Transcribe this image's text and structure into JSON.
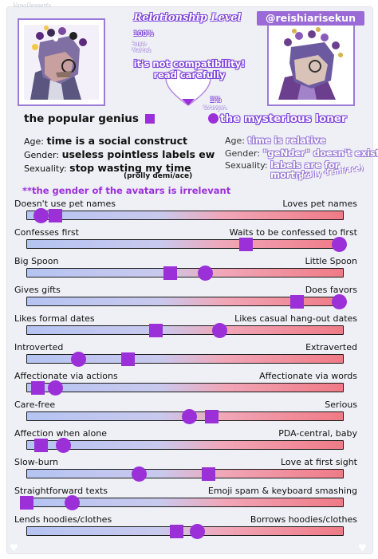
{
  "watermark": "VanaDesserts",
  "header": {
    "title": "Relationship Level",
    "percent_top": "100%",
    "percent_top_caption": "Super\nMarried",
    "percent_bottom": "1%",
    "percent_bottom_caption": "Strangers",
    "notice": "it's not compatibility!\nread carefully",
    "handle": "@reishiarisekun"
  },
  "left": {
    "name": "the popular genius",
    "marker": "square",
    "age_label": "Age:",
    "age": "time is a social construct",
    "gender_label": "Gender:",
    "gender": "useless pointless labels ew",
    "sexuality_label": "Sexuality:",
    "sexuality": "stop wasting my time",
    "sexuality_note": "(prolly demi/ace)"
  },
  "right": {
    "name": "the mysterious loner",
    "marker": "circle",
    "age_label": "Age:",
    "age": "time is relative",
    "gender_label": "Gender:",
    "gender": "\"geNder\" doesn't exist",
    "sexuality_label": "Sexuality:",
    "sexuality": "labels are for\nmortals",
    "sexuality_note": "(prolly demi/ace)"
  },
  "gender_note": "**the gender of the avatars is irrelevant",
  "colors": {
    "accent": "#9b30d9",
    "frame": "#9b7bd6",
    "bar_left": "#b5c4f2",
    "bar_right": "#f07a86"
  },
  "sliders": [
    {
      "left": "Doesn't use pet names",
      "right": "Loves pet names",
      "square": 0.09,
      "circle": 0.045
    },
    {
      "left": "Confesses first",
      "right": "Waits to be confessed to first",
      "square": 0.695,
      "circle": 0.99
    },
    {
      "left": "Big Spoon",
      "right": "Little Spoon",
      "square": 0.455,
      "circle": 0.565
    },
    {
      "left": "Gives gifts",
      "right": "Does favors",
      "square": 0.855,
      "circle": 0.99
    },
    {
      "left": "Likes formal dates",
      "right": "Likes casual hang-out dates",
      "square": 0.41,
      "circle": 0.61
    },
    {
      "left": "Introverted",
      "right": "Extraverted",
      "square": 0.32,
      "circle": 0.165
    },
    {
      "left": "Affectionate via actions",
      "right": "Affectionate via words",
      "square": 0.035,
      "circle": 0.09
    },
    {
      "left": "Care-free",
      "right": "Serious",
      "square": 0.585,
      "circle": 0.515
    },
    {
      "left": "Affection when alone",
      "right": "PDA-central, baby",
      "square": 0.045,
      "circle": 0.115
    },
    {
      "left": "Slow-burn",
      "right": "Love at first sight",
      "square": 0.575,
      "circle": 0.355
    },
    {
      "left": "Straightforward texts",
      "right": "Emoji spam & keyboard smashing",
      "square": 0.0,
      "circle": 0.145
    },
    {
      "left": "Lends hoodies/clothes",
      "right": "Borrows hoodies/clothes",
      "square": 0.475,
      "circle": 0.54
    }
  ]
}
